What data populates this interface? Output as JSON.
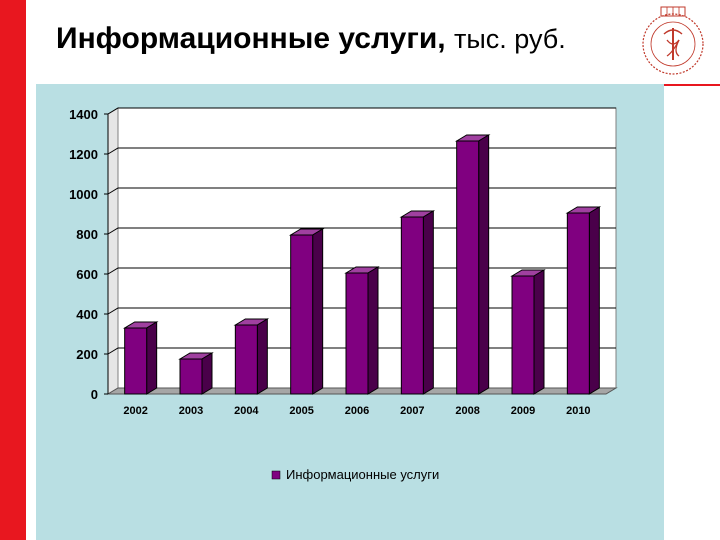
{
  "header": {
    "title_main": "Информационные услуги,",
    "title_unit": "тыс. руб."
  },
  "colors": {
    "accent": "#e8171f",
    "panel_bg": "#b9dfe3",
    "bar_front": "#800080",
    "bar_top": "#a040a0",
    "bar_side": "#4a004a",
    "floor": "#a6a6a6"
  },
  "logo": {
    "name": "university-emblem-icon"
  },
  "chart_data": {
    "type": "bar",
    "title": "",
    "xlabel": "",
    "ylabel": "",
    "ylim": [
      0,
      1400
    ],
    "yticks": [
      0,
      200,
      400,
      600,
      800,
      1000,
      1200,
      1400
    ],
    "categories": [
      "2002",
      "2003",
      "2004",
      "2005",
      "2006",
      "2007",
      "2008",
      "2009",
      "2010"
    ],
    "series": [
      {
        "name": "Информационные услуги",
        "values": [
          330,
          175,
          345,
          795,
          605,
          885,
          1265,
          590,
          905
        ]
      }
    ],
    "grid": true,
    "legend": "bottom-center",
    "three_d": true
  }
}
